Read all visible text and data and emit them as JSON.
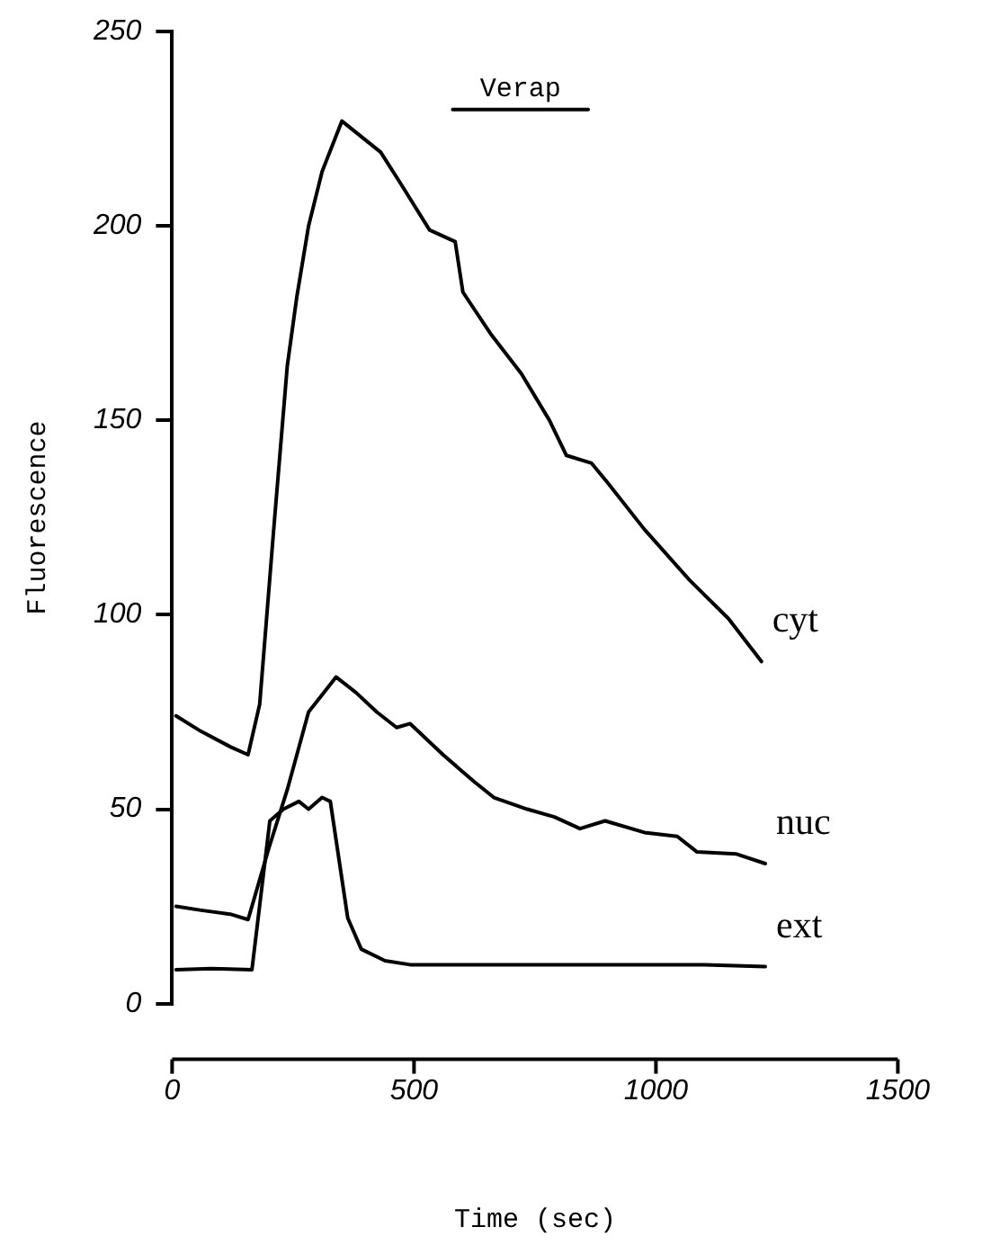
{
  "chart_data": {
    "type": "line",
    "xlabel": "Time (sec)",
    "ylabel": "Fluorescence",
    "xlim": [
      0,
      1500
    ],
    "xticks": [
      0,
      500,
      1000,
      1500
    ],
    "ylim": [
      0,
      250
    ],
    "yticks": [
      0,
      50,
      100,
      150,
      200,
      250
    ],
    "grid": false,
    "legend": false,
    "marker": "none",
    "line_style": "solid",
    "annotations": [
      {
        "text": "Verap",
        "x": 720,
        "y": 230
      }
    ],
    "series": [
      {
        "name": "cyt",
        "color": "#000000",
        "x": [
          8,
          60,
          121,
          157,
          181,
          210,
          238,
          258,
          282,
          310,
          351,
          391,
          431,
          472,
          532,
          585,
          601,
          660,
          722,
          780,
          815,
          867,
          900,
          976,
          1069,
          1150,
          1218
        ],
        "values": [
          74,
          70,
          66,
          64,
          77,
          122,
          164,
          182,
          200,
          214,
          227,
          223,
          219,
          211,
          199,
          196,
          183,
          172,
          162,
          150,
          141,
          139,
          134,
          122,
          109,
          99,
          88
        ]
      },
      {
        "name": "nuc",
        "color": "#000000",
        "x": [
          8,
          60,
          120,
          157,
          200,
          238,
          282,
          339,
          380,
          423,
          464,
          492,
          560,
          625,
          665,
          734,
          790,
          843,
          895,
          976,
          1044,
          1085,
          1165,
          1226
        ],
        "values": [
          25,
          24,
          23,
          21.6,
          40,
          55,
          75,
          84,
          80,
          75,
          71,
          72,
          64,
          57,
          53,
          50,
          48,
          45,
          47,
          44,
          43,
          39,
          38.5,
          36
        ]
      },
      {
        "name": "ext",
        "color": "#000000",
        "x": [
          8,
          80,
          165,
          202,
          230,
          262,
          282,
          310,
          327,
          363,
          391,
          440,
          492,
          600,
          700,
          800,
          900,
          1000,
          1100,
          1226
        ],
        "values": [
          8.7,
          9,
          8.7,
          47,
          50,
          52,
          50,
          53,
          52,
          22,
          14,
          11,
          10,
          10,
          10,
          10,
          10,
          10,
          10,
          9.5
        ]
      },
      {
        "color": "#000000",
        "x": [
          580,
          860
        ],
        "values": [
          230,
          230
        ]
      }
    ]
  }
}
